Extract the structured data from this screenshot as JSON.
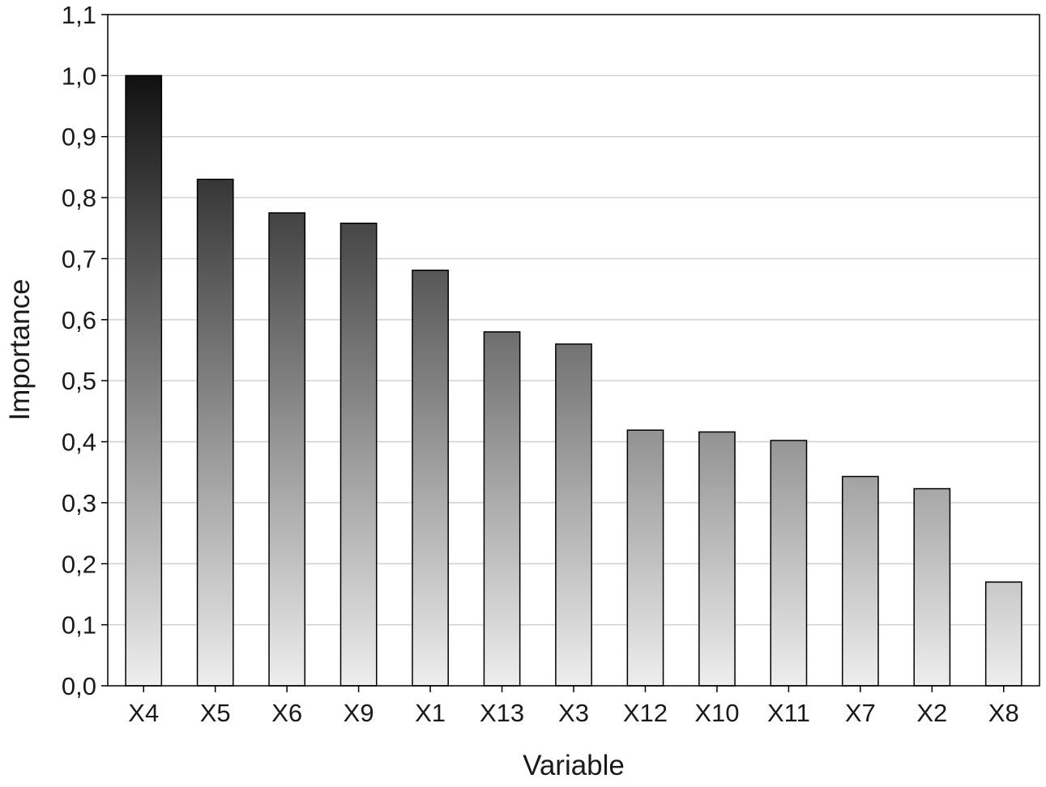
{
  "chart_data": {
    "type": "bar",
    "categories": [
      "X4",
      "X5",
      "X6",
      "X9",
      "X1",
      "X13",
      "X3",
      "X12",
      "X10",
      "X11",
      "X7",
      "X2",
      "X8"
    ],
    "values": [
      1.0,
      0.83,
      0.775,
      0.758,
      0.681,
      0.58,
      0.56,
      0.419,
      0.416,
      0.402,
      0.343,
      0.323,
      0.17
    ],
    "xlabel": "Variable",
    "ylabel": "Importance",
    "ylim": [
      0,
      1.1
    ],
    "yticks": [
      "0,0",
      "0,1",
      "0,2",
      "0,3",
      "0,4",
      "0,5",
      "0,6",
      "0,7",
      "0,8",
      "0,9",
      "1,0",
      "1,1"
    ],
    "grid": "horizontal",
    "bar_fill": "vertical gradient, dark at top of chart to light at baseline",
    "colors": {
      "bar_top": "#111111",
      "bar_bottom": "#eeeeee",
      "bar_stroke": "#000000",
      "grid": "#d0d0d0",
      "frame": "#000000"
    }
  }
}
